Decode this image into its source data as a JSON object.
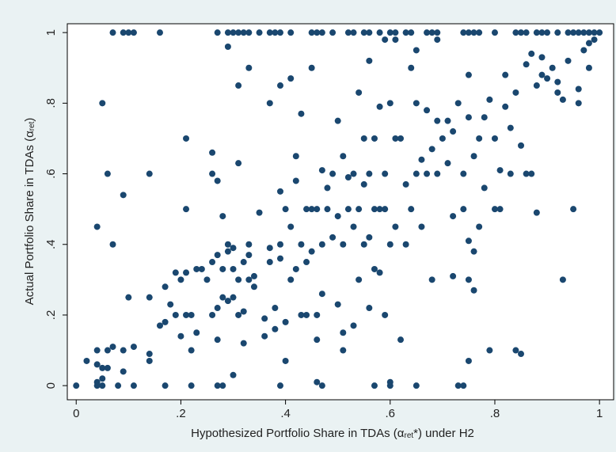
{
  "chart_data": {
    "type": "scatter",
    "xlabel": {
      "text": "Hypothesized Portfolio Share in TDAs (α",
      "subscript": "ret",
      "suffix": "*) under H2"
    },
    "ylabel": {
      "text": "Actual Portfolio Share in TDAs (α",
      "subscript": "ret",
      "suffix": ")"
    },
    "color": "#1a476f",
    "grid": false,
    "xlim": [
      -0.017,
      1.027
    ],
    "ylim": [
      -0.04,
      1.025
    ],
    "xticks": [
      0,
      {
        "value": 0.2,
        "label": ".2"
      },
      {
        "value": 0.4,
        "label": ".4"
      },
      {
        "value": 0.6,
        "label": ".6"
      },
      {
        "value": 0.8,
        "label": ".8"
      },
      1
    ],
    "yticks": [
      0,
      {
        "value": 0.2,
        "label": ".2"
      },
      {
        "value": 0.4,
        "label": ".4"
      },
      {
        "value": 0.6,
        "label": ".6"
      },
      {
        "value": 0.8,
        "label": ".8"
      },
      1
    ],
    "x": [
      0.02,
      0.04,
      0.04,
      0.05,
      0.06,
      0.04,
      0.05,
      0.06,
      0.07,
      0.09,
      0.09,
      0.11,
      0.14,
      0.14,
      0.1,
      0.14,
      0.16,
      0.17,
      0.17,
      0.18,
      0.19,
      0.19,
      0.2,
      0.2,
      0.21,
      0.21,
      0.22,
      0.22,
      0.23,
      0.23,
      0.24,
      0.25,
      0.26,
      0.26,
      0.27,
      0.27,
      0.27,
      0.28,
      0.28,
      0.28,
      0.29,
      0.29,
      0.29,
      0.3,
      0.3,
      0.3,
      0.3,
      0.31,
      0.31,
      0.32,
      0.32,
      0.32,
      0.33,
      0.33,
      0.33,
      0.34,
      0.34,
      0.35,
      0.36,
      0.36,
      0.37,
      0.37,
      0.38,
      0.38,
      0.39,
      0.39,
      0.39,
      0.4,
      0.4,
      0.4,
      0.41,
      0.41,
      0.42,
      0.42,
      0.42,
      0.43,
      0.43,
      0.44,
      0.44,
      0.44,
      0.45,
      0.45,
      0.46,
      0.46,
      0.46,
      0.46,
      0.47,
      0.47,
      0.47,
      0.48,
      0.48,
      0.49,
      0.49,
      0.5,
      0.5,
      0.5,
      0.51,
      0.51,
      0.51,
      0.51,
      0.52,
      0.52,
      0.53,
      0.53,
      0.53,
      0.54,
      0.54,
      0.54,
      0.55,
      0.55,
      0.55,
      0.56,
      0.56,
      0.56,
      0.57,
      0.57,
      0.57,
      0.58,
      0.58,
      0.58,
      0.59,
      0.59,
      0.59,
      0.6,
      0.6,
      0.6,
      0.61,
      0.61,
      0.62,
      0.62,
      0.63,
      0.63,
      0.64,
      0.64,
      0.65,
      0.65,
      0.66,
      0.66,
      0.67,
      0.67,
      0.68,
      0.68,
      0.69,
      0.69,
      0.7,
      0.71,
      0.71,
      0.72,
      0.72,
      0.72,
      0.73,
      0.74,
      0.74,
      0.75,
      0.75,
      0.75,
      0.75,
      0.76,
      0.76,
      0.76,
      0.77,
      0.77,
      0.78,
      0.78,
      0.79,
      0.79,
      0.8,
      0.8,
      0.81,
      0.81,
      0.82,
      0.82,
      0.83,
      0.83,
      0.84,
      0.84,
      0.85,
      0.85,
      0.86,
      0.86,
      0.87,
      0.87,
      0.88,
      0.88,
      0.89,
      0.89,
      0.9,
      0.91,
      0.92,
      0.92,
      0.93,
      0.93,
      0.94,
      0.95,
      0.96,
      0.96,
      0.97,
      0.98,
      0.98,
      0.99,
      0.05,
      0.06,
      0.07,
      0.09,
      0.04,
      0.14,
      0.21,
      0.21,
      0.26,
      0.26,
      0.27,
      0.31,
      0.31,
      0.33,
      0.29,
      0.37,
      0.39,
      0.41,
      0.45,
      0.43,
      0.56,
      0.59,
      0.61,
      0.65,
      0.69,
      0.75,
      0.07,
      0.09,
      0.1,
      0.11,
      0.16,
      0.27,
      0.29,
      0.3,
      0.31,
      0.32,
      0.33,
      0.35,
      0.37,
      0.38,
      0.39,
      0.41,
      0.45,
      0.46,
      0.47,
      0.49,
      0.52,
      0.53,
      0.55,
      0.56,
      0.58,
      0.6,
      0.61,
      0.63,
      0.64,
      0.67,
      0.68,
      0.69,
      0.74,
      0.75,
      0.76,
      0.77,
      0.8,
      0.84,
      0.85,
      0.86,
      0.88,
      0.89,
      0.9,
      0.92,
      0.94,
      0.95,
      0.96,
      0.97,
      0.98,
      0.99,
      1.0,
      0,
      0.04,
      0.05,
      0.08,
      0.11,
      0.17,
      0.22,
      0.27,
      0.28,
      0.39,
      0.47,
      0.57,
      0.6,
      0.65,
      0.73,
      0.74
    ],
    "values": [
      0.07,
      0.1,
      0.06,
      0.05,
      0.05,
      0.01,
      0.02,
      0.1,
      0.11,
      0.04,
      0.1,
      0.11,
      0.09,
      0.07,
      0.25,
      0.25,
      0.17,
      0.18,
      0.28,
      0.23,
      0.2,
      0.32,
      0.3,
      0.14,
      0.2,
      0.32,
      0.1,
      0.2,
      0.15,
      0.33,
      0.33,
      0.3,
      0.2,
      0.35,
      0.22,
      0.37,
      0.13,
      0.25,
      0.48,
      0.33,
      0.24,
      0.4,
      0.38,
      0.25,
      0.39,
      0.33,
      0.03,
      0.3,
      0.2,
      0.35,
      0.12,
      0.21,
      0.3,
      0.37,
      0.4,
      0.31,
      0.28,
      0.49,
      0.14,
      0.19,
      0.39,
      0.35,
      0.22,
      0.16,
      0.36,
      0.4,
      0.55,
      0.18,
      0.07,
      0.5,
      0.3,
      0.45,
      0.33,
      0.58,
      0.65,
      0.4,
      0.2,
      0.35,
      0.5,
      0.2,
      0.38,
      0.5,
      0.2,
      0.13,
      0.01,
      0.5,
      0.26,
      0.4,
      0.61,
      0.5,
      0.56,
      0.6,
      0.42,
      0.23,
      0.48,
      0.75,
      0.1,
      0.15,
      0.4,
      0.65,
      0.5,
      0.59,
      0.17,
      0.45,
      0.6,
      0.5,
      0.3,
      0.83,
      0.4,
      0.57,
      0.7,
      0.22,
      0.42,
      0.6,
      0.5,
      0.33,
      0.7,
      0.5,
      0.79,
      0.32,
      0.2,
      0.6,
      0.5,
      0.4,
      0.8,
      0.01,
      0.7,
      0.45,
      0.13,
      0.7,
      0.4,
      0.57,
      0.5,
      0.9,
      0.6,
      0.8,
      0.64,
      0.45,
      0.6,
      0.78,
      0.67,
      0.3,
      0.6,
      0.75,
      0.7,
      0.63,
      0.75,
      0.31,
      0.48,
      0.72,
      0.8,
      0.5,
      0.6,
      0.3,
      0.07,
      0.41,
      0.76,
      0.27,
      0.65,
      0.38,
      0.7,
      0.45,
      0.56,
      0.76,
      0.1,
      0.81,
      0.5,
      0.7,
      0.5,
      0.61,
      0.88,
      0.79,
      0.6,
      0.73,
      0.1,
      0.83,
      0.68,
      0.09,
      0.6,
      0.91,
      0.94,
      0.6,
      0.49,
      0.85,
      0.88,
      0.93,
      0.87,
      0.9,
      0.86,
      0.83,
      0.3,
      0.81,
      0.92,
      0.5,
      0.8,
      0.84,
      0.95,
      0.9,
      0.97,
      0.98,
      0.8,
      0.6,
      0.4,
      0.54,
      0.45,
      0.6,
      0.7,
      0.5,
      0.66,
      0.6,
      0.58,
      0.63,
      0.85,
      0.9,
      0.96,
      0.8,
      0.85,
      0.87,
      0.9,
      0.77,
      0.92,
      0.98,
      0.98,
      0.95,
      0.98,
      0.88,
      1,
      1,
      1,
      1,
      1,
      1,
      1,
      1,
      1,
      1,
      1,
      1,
      1,
      1,
      1,
      1,
      1,
      1,
      1,
      1,
      1,
      1,
      1,
      1,
      1,
      1,
      1,
      1,
      1,
      1,
      1,
      1,
      1,
      1,
      1,
      1,
      1,
      1,
      1,
      1,
      1,
      1,
      1,
      1,
      1,
      1,
      1,
      1,
      1,
      1,
      1,
      0,
      0,
      0,
      0,
      0,
      0,
      0,
      0,
      0,
      0,
      0,
      0,
      0,
      0,
      0,
      0
    ]
  }
}
